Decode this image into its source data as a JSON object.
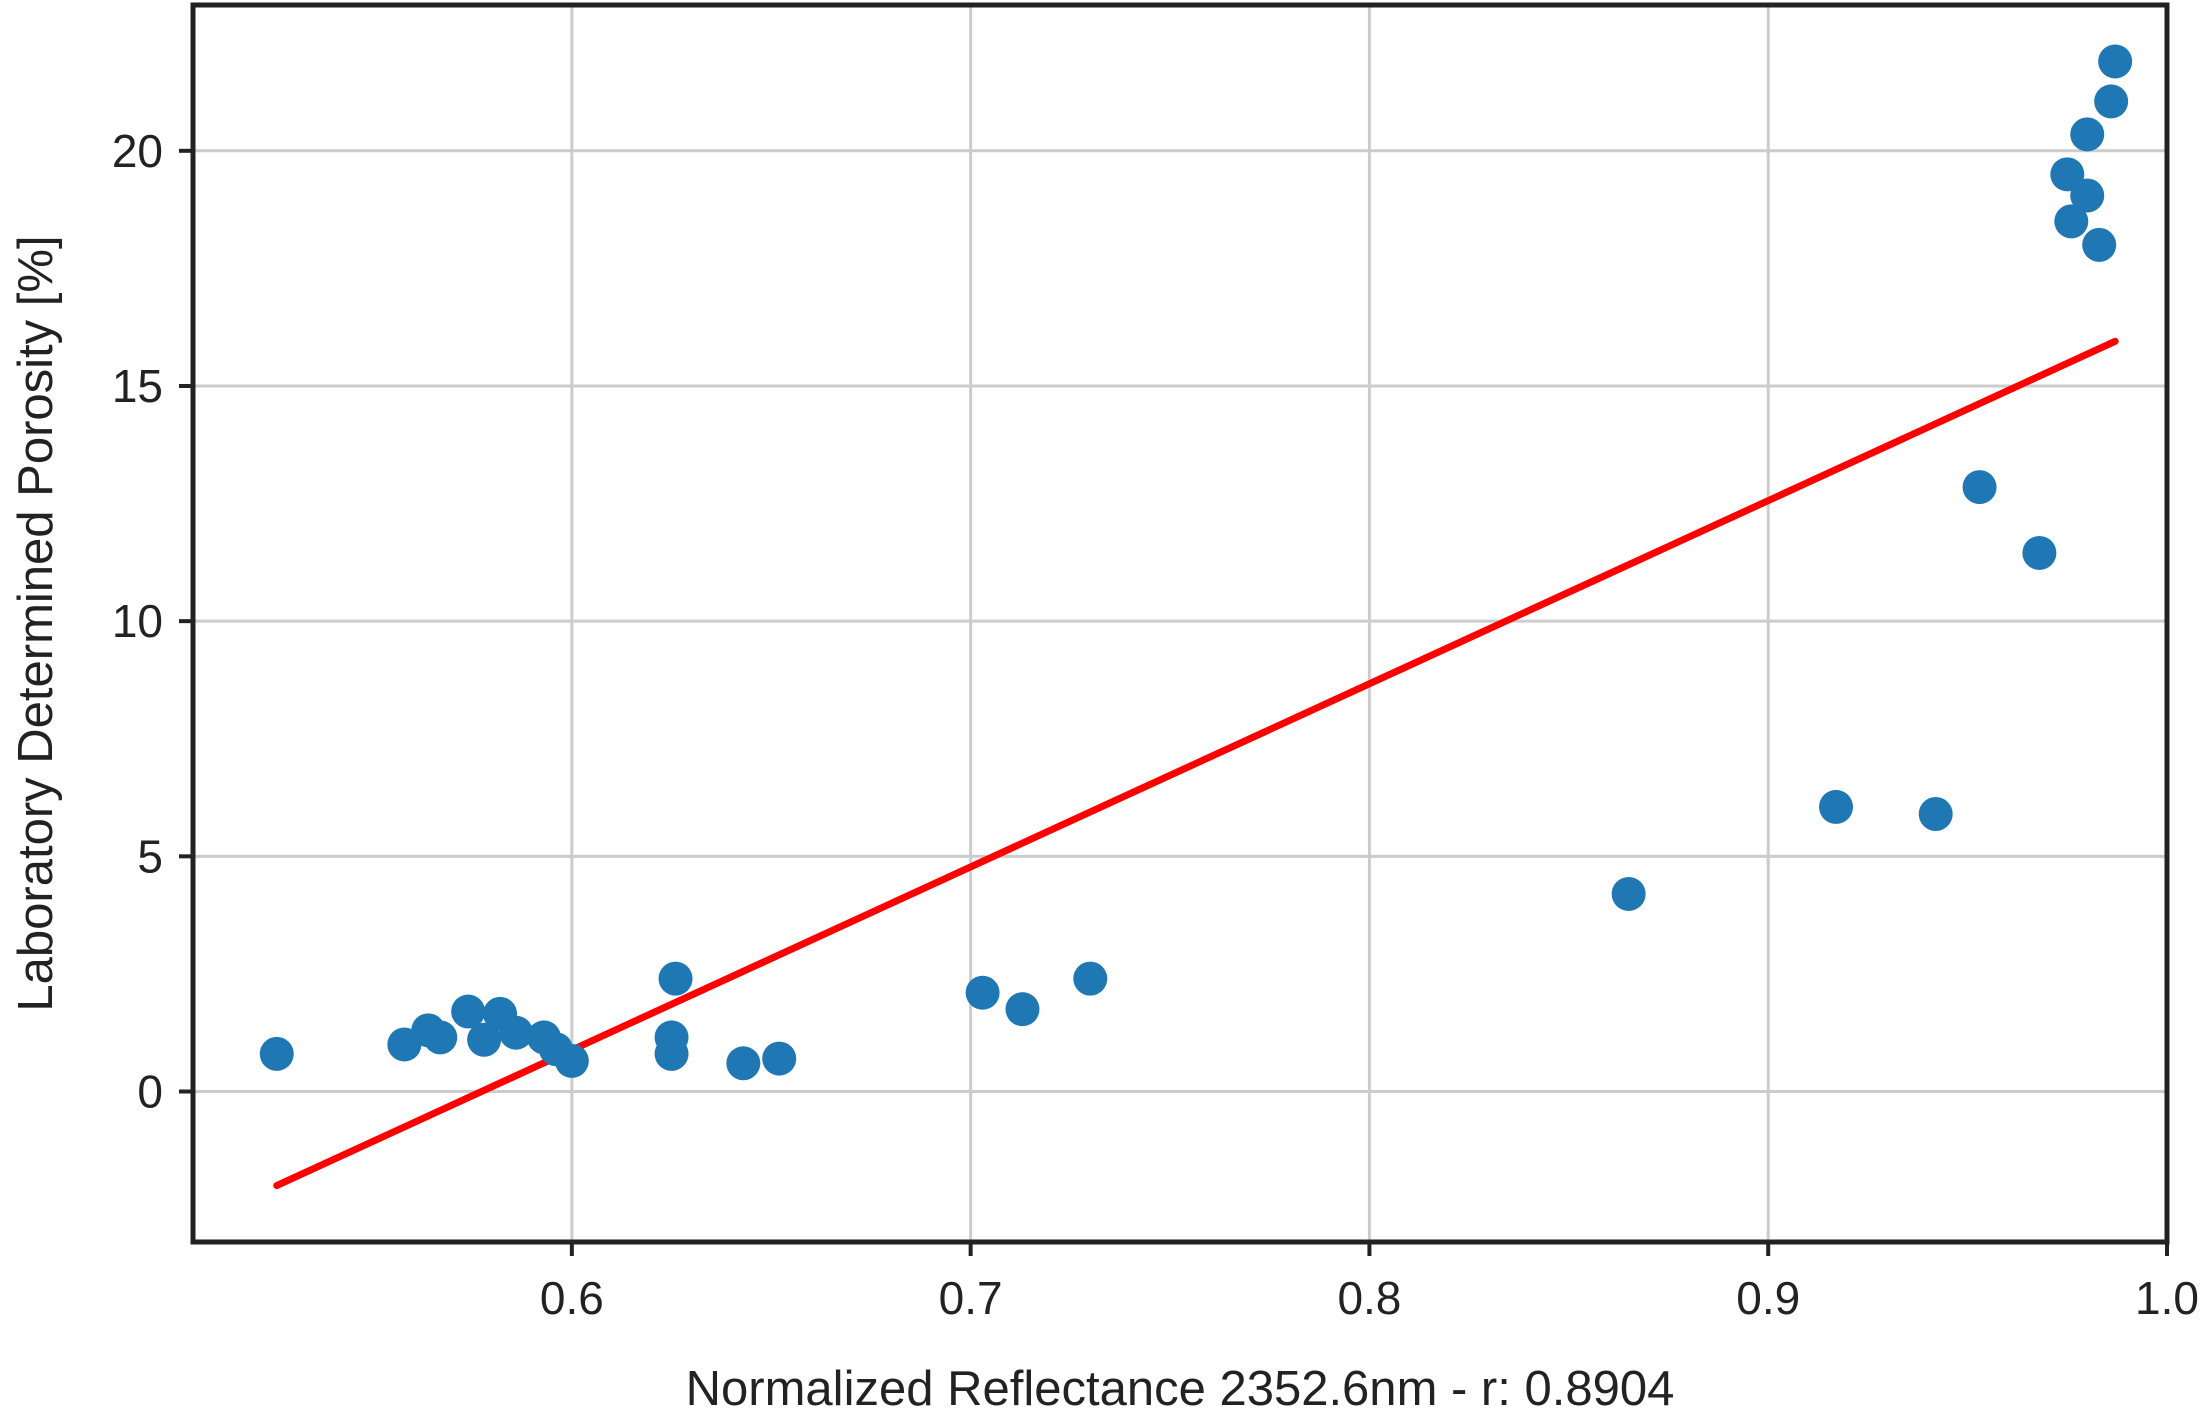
{
  "chart_data": {
    "type": "scatter",
    "xlabel": "Normalized Reflectance 2352.6nm - r:   0.8904",
    "ylabel": "Laboratory Determined Porosity [%]",
    "xlim": [
      0.505,
      1.0
    ],
    "ylim": [
      -3.2,
      23.1
    ],
    "xticks": [
      0.6,
      0.7,
      0.8,
      0.9,
      1.0
    ],
    "xtick_labels": [
      "0.6",
      "0.7",
      "0.8",
      "0.9",
      "1.0"
    ],
    "yticks": [
      0,
      5,
      10,
      15,
      20
    ],
    "ytick_labels": [
      "0",
      "5",
      "10",
      "15",
      "20"
    ],
    "grid": true,
    "colors": {
      "points": "#1f77b4",
      "fit": "#ff0000",
      "grid": "#cccccc",
      "frame": "#222222"
    },
    "series": [
      {
        "kind": "points",
        "x": [
          0.526,
          0.558,
          0.564,
          0.567,
          0.574,
          0.578,
          0.582,
          0.586,
          0.593,
          0.596,
          0.6,
          0.625,
          0.625,
          0.626,
          0.643,
          0.652,
          0.703,
          0.713,
          0.73,
          0.865,
          0.917,
          0.942,
          0.953,
          0.968,
          0.975,
          0.976,
          0.98,
          0.98,
          0.983,
          0.986,
          0.987
        ],
        "y": [
          0.8,
          1.0,
          1.3,
          1.15,
          1.7,
          1.1,
          1.65,
          1.25,
          1.15,
          0.9,
          0.65,
          0.8,
          1.15,
          2.4,
          0.6,
          0.7,
          2.1,
          1.75,
          2.4,
          4.2,
          6.05,
          5.9,
          12.85,
          11.45,
          19.5,
          18.5,
          20.35,
          19.05,
          18.0,
          21.05,
          21.9
        ]
      },
      {
        "kind": "line",
        "x": [
          0.526,
          0.987
        ],
        "y": [
          -2.0,
          15.95
        ]
      }
    ]
  }
}
